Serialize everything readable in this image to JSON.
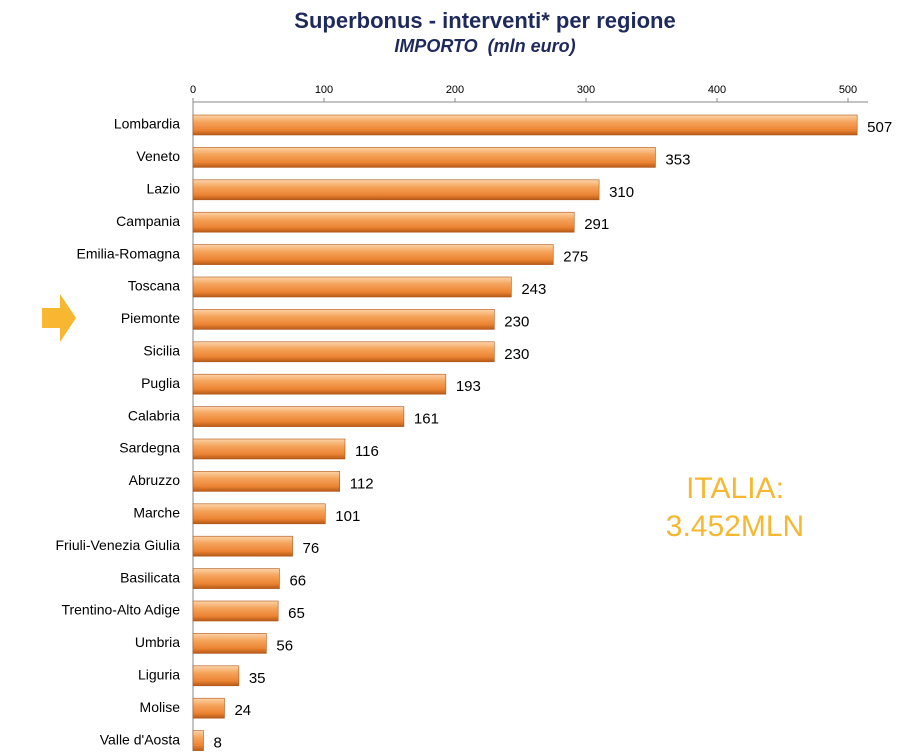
{
  "chart_data": {
    "type": "bar",
    "orientation": "horizontal",
    "title": "Superbonus - interventi* per regione",
    "subtitle": "IMPORTO  (mln euro)",
    "annotation": [
      "ITALIA:",
      "3.452MLN"
    ],
    "categories": [
      "Lombardia",
      "Veneto",
      "Lazio",
      "Campania",
      "Emilia-Romagna",
      "Toscana",
      "Piemonte",
      "Sicilia",
      "Puglia",
      "Calabria",
      "Sardegna",
      "Abruzzo",
      "Marche",
      "Friuli-Venezia Giulia",
      "Basilicata",
      "Trentino-Alto Adige",
      "Umbria",
      "Liguria",
      "Molise",
      "Valle d'Aosta"
    ],
    "values": [
      507,
      353,
      310,
      291,
      275,
      243,
      230,
      230,
      193,
      161,
      116,
      112,
      101,
      76,
      66,
      65,
      56,
      35,
      24,
      8
    ],
    "color": "#f08c3a",
    "xlim": [
      0,
      500
    ],
    "xticks": [
      0,
      100,
      200,
      300,
      400,
      500
    ],
    "grid": false
  }
}
